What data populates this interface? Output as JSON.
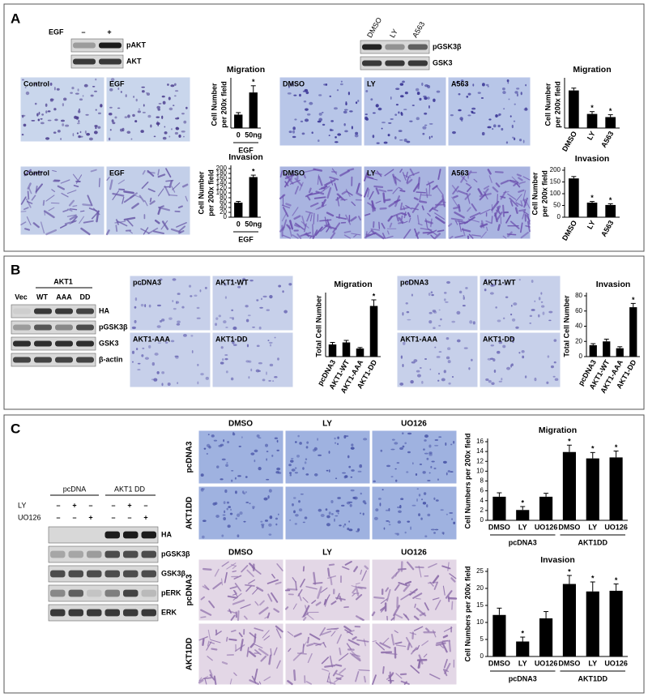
{
  "panels": [
    {
      "label": "A",
      "blots": [
        {
          "treatment": "EGF",
          "lanes": [
            "–",
            "+"
          ],
          "rows": [
            "pAKT",
            "AKT"
          ]
        },
        {
          "lanes": [
            "DMSO",
            "LY",
            "A563"
          ],
          "rows": [
            "pGSK3β",
            "GSK3"
          ]
        }
      ],
      "images": [
        {
          "labels": [
            "Control",
            "EGF"
          ]
        },
        {
          "labels": [
            "Control",
            "EGF"
          ]
        },
        {
          "labels": [
            "DMSO",
            "LY",
            "A563"
          ]
        },
        {
          "labels": [
            "DMSO",
            "LY",
            "A563"
          ]
        }
      ],
      "charts": [
        {
          "type": "bar",
          "title": "Migration",
          "ylabel": [
            "Cell Number",
            "per 200x field"
          ],
          "categories": [
            "0",
            "50ng"
          ],
          "groups": [
            {
              "label": "EGF",
              "size": 2
            }
          ],
          "values": [
            20,
            53
          ],
          "errors": [
            3,
            10
          ],
          "significance": [
            null,
            "*"
          ],
          "ylim": [
            0,
            70
          ]
        },
        {
          "type": "bar",
          "title": "Invasion",
          "ylabel": [
            "Cell Number",
            "per 200x field"
          ],
          "categories": [
            "0",
            "50ng"
          ],
          "groups": [
            {
              "label": "EGF",
              "size": 2
            }
          ],
          "values": [
            60,
            165
          ],
          "errors": [
            5,
            8
          ],
          "significance": [
            null,
            "*"
          ],
          "ylim": [
            0,
            200
          ],
          "yticks": [
            0,
            20,
            40,
            60,
            80,
            100,
            120,
            140,
            160,
            180,
            200
          ]
        },
        {
          "type": "bar",
          "title": "Migration",
          "ylabel": [
            "Cell Number",
            "per 200x field"
          ],
          "categories": [
            "DMSO",
            "LY",
            "A563"
          ],
          "values": [
            48,
            18,
            14
          ],
          "errors": [
            3,
            3,
            3
          ],
          "significance": [
            null,
            "*",
            "*"
          ],
          "ylim": [
            0,
            60
          ]
        },
        {
          "type": "bar",
          "title": "Invasion",
          "ylabel": [
            "Cell Number",
            "per 200x field"
          ],
          "categories": [
            "DMSO",
            "LY",
            "A563"
          ],
          "values": [
            165,
            62,
            52
          ],
          "errors": [
            8,
            5,
            5
          ],
          "significance": [
            null,
            "*",
            "*"
          ],
          "ylim": [
            0,
            200
          ],
          "yticks": [
            0,
            50,
            100,
            150,
            200
          ]
        }
      ]
    },
    {
      "label": "B",
      "blots": [
        {
          "group": "AKT1",
          "lanes": [
            "Vec",
            "WT",
            "AAA",
            "DD"
          ],
          "rows": [
            "HA",
            "pGSK3β",
            "GSK3",
            "β-actin"
          ]
        }
      ],
      "images": [
        {
          "labels": [
            "pcDNA3",
            "AKT1-WT",
            "AKT1-AAA",
            "AKT1-DD"
          ]
        },
        {
          "labels": [
            "pcDNA3",
            "AKT1-WT",
            "AKT1-AAA",
            "AKT1-DD"
          ]
        }
      ],
      "charts": [
        {
          "type": "bar",
          "title": "Migration",
          "ylabel": [
            "Total Cell Number"
          ],
          "categories": [
            "pcDNA3",
            "AKT1-WT",
            "AKT1-AAA",
            "AKT1-DD"
          ],
          "values": [
            12,
            14,
            8,
            50
          ],
          "errors": [
            2,
            2,
            1,
            6
          ],
          "significance": [
            null,
            null,
            null,
            "*"
          ],
          "ylim": [
            0,
            60
          ]
        },
        {
          "type": "bar",
          "title": "Invasion",
          "ylabel": [
            "Total Cell Number"
          ],
          "categories": [
            "pcDNA3",
            "AKT1-WT",
            "AKT1-AAA",
            "AKT1-DD"
          ],
          "values": [
            15,
            20,
            11,
            65
          ],
          "errors": [
            2,
            3,
            2,
            5
          ],
          "significance": [
            null,
            null,
            null,
            "*"
          ],
          "ylim": [
            0,
            80
          ],
          "yticks": [
            0,
            20,
            40,
            60,
            80
          ]
        }
      ]
    },
    {
      "label": "C",
      "blots": [
        {
          "groups": [
            "pcDNA",
            "AKT1 DD"
          ],
          "treatments": [
            {
              "name": "LY",
              "signs": [
                "–",
                "+",
                "–",
                "–",
                "+",
                "–"
              ]
            },
            {
              "name": "UO126",
              "signs": [
                "–",
                "–",
                "+",
                "–",
                "–",
                "+"
              ]
            }
          ],
          "rows": [
            "HA",
            "pGSK3β",
            "GSK3β",
            "pERK",
            "ERK"
          ]
        }
      ],
      "images": [
        {
          "columns": [
            "DMSO",
            "LY",
            "UO126"
          ],
          "rows": [
            "pcDNA3",
            "AKT1DD"
          ]
        },
        {
          "columns": [
            "DMSO",
            "LY",
            "UO126"
          ],
          "rows": [
            "pcDNA3",
            "AKT1DD"
          ]
        }
      ],
      "charts": [
        {
          "type": "bar",
          "title": "Migration",
          "ylabel": [
            "Cell Numbers per 200x field"
          ],
          "categories": [
            "DMSO",
            "LY",
            "UO126",
            "DMSO",
            "LY",
            "UO126"
          ],
          "groups": [
            {
              "label": "pcDNA3",
              "size": 3
            },
            {
              "label": "AKT1DD",
              "size": 3
            }
          ],
          "values": [
            4.8,
            2.1,
            4.8,
            13.9,
            12.6,
            12.8
          ],
          "errors": [
            0.8,
            0.7,
            0.7,
            1.4,
            1.2,
            1.3
          ],
          "significance": [
            null,
            "*",
            null,
            "*",
            "*",
            "*"
          ],
          "ylim": [
            0,
            16
          ],
          "yticks": [
            0,
            2,
            4,
            6,
            8,
            10,
            12,
            14,
            16
          ]
        },
        {
          "type": "bar",
          "title": "Invasion",
          "ylabel": [
            "Cell Numbers per 200x field"
          ],
          "categories": [
            "DMSO",
            "LY",
            "UO126",
            "DMSO",
            "LY",
            "UO126"
          ],
          "groups": [
            {
              "label": "pcDNA3",
              "size": 3
            },
            {
              "label": "AKT1DD",
              "size": 3
            }
          ],
          "values": [
            12.2,
            4.4,
            11.2,
            21.3,
            19.1,
            19.3
          ],
          "errors": [
            2,
            1.3,
            2,
            2.5,
            2.8,
            2
          ],
          "significance": [
            null,
            "*",
            null,
            "*",
            "*",
            "*"
          ],
          "ylim": [
            0,
            25
          ],
          "yticks": [
            0,
            5,
            10,
            15,
            20,
            25
          ]
        }
      ]
    }
  ]
}
